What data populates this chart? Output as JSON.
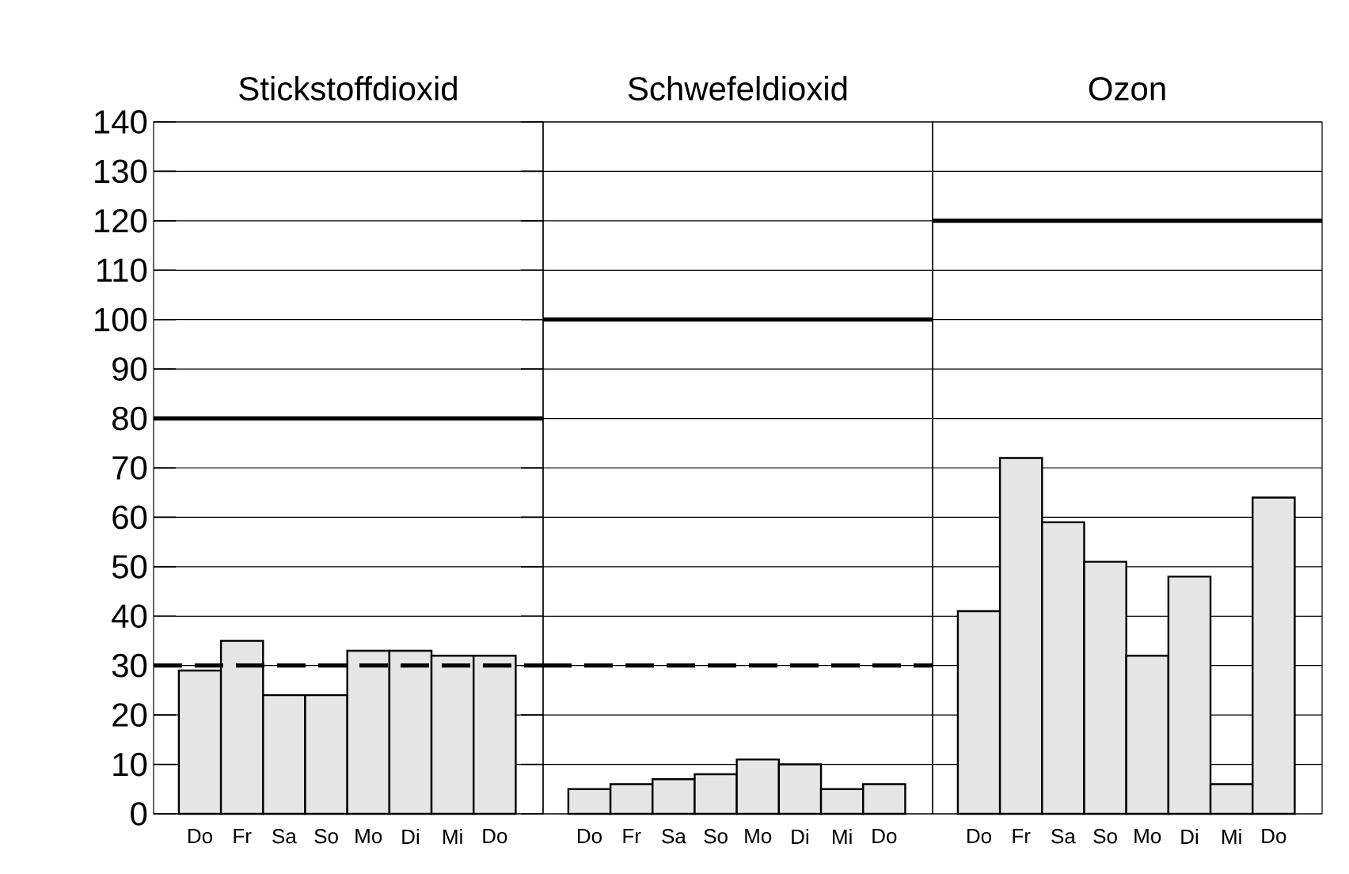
{
  "chart_data": [
    {
      "type": "bar",
      "title": "Stickstoffdioxid",
      "categories": [
        "Do",
        "Fr",
        "Sa",
        "So",
        "Mo",
        "Di",
        "Mi",
        "Do"
      ],
      "values": [
        29,
        35,
        24,
        24,
        33,
        33,
        32,
        32
      ],
      "color": "#e6e6e6",
      "ylim": [
        0,
        140
      ],
      "yticks": [
        0,
        10,
        20,
        30,
        40,
        50,
        60,
        70,
        80,
        90,
        100,
        110,
        120,
        130,
        140
      ],
      "grid": "y",
      "ref_lines": [
        {
          "axis": "y",
          "value": 80,
          "line_style": "solid",
          "color": "#000000"
        },
        {
          "axis": "y",
          "value": 30,
          "line_style": "dashed",
          "color": "#000000"
        }
      ]
    },
    {
      "type": "bar",
      "title": "Schwefeldioxid",
      "categories": [
        "Do",
        "Fr",
        "Sa",
        "So",
        "Mo",
        "Di",
        "Mi",
        "Do"
      ],
      "values": [
        5,
        6,
        7,
        8,
        11,
        10,
        5,
        6
      ],
      "color": "#e6e6e6",
      "ylim": [
        0,
        140
      ],
      "yticks": [
        0,
        10,
        20,
        30,
        40,
        50,
        60,
        70,
        80,
        90,
        100,
        110,
        120,
        130,
        140
      ],
      "grid": "y",
      "tick_labels": "x",
      "ref_lines": [
        {
          "axis": "y",
          "value": 100,
          "line_style": "solid",
          "color": "#000000"
        },
        {
          "axis": "y",
          "value": 30,
          "line_style": "dashed",
          "color": "#000000"
        }
      ]
    },
    {
      "type": "bar",
      "title": "Ozon",
      "categories": [
        "Do",
        "Fr",
        "Sa",
        "So",
        "Mo",
        "Di",
        "Mi",
        "Do"
      ],
      "values": [
        41,
        72,
        59,
        51,
        32,
        48,
        6,
        64
      ],
      "color": "#e6e6e6",
      "ylim": [
        0,
        140
      ],
      "yticks": [
        0,
        10,
        20,
        30,
        40,
        50,
        60,
        70,
        80,
        90,
        100,
        110,
        120,
        130,
        140
      ],
      "grid": "y",
      "tick_labels": "x",
      "ref_lines": [
        {
          "axis": "y",
          "value": 120,
          "line_style": "solid",
          "color": "#000000"
        }
      ]
    }
  ]
}
